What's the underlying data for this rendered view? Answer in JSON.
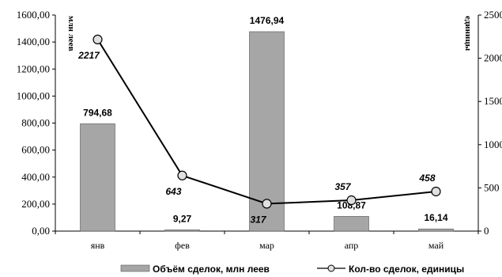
{
  "chart_data": {
    "type": "bar",
    "title": "",
    "categories": [
      "янв",
      "фев",
      "мар",
      "апр",
      "май"
    ],
    "series": [
      {
        "name": "Объём сделок, млн леев",
        "type": "bar",
        "axis": "left",
        "values": [
          794.68,
          9.27,
          1476.94,
          108.87,
          16.14
        ],
        "labels": [
          "794,68",
          "9,27",
          "1476,94",
          "108,87",
          "16,14"
        ],
        "color": "#a6a6a6"
      },
      {
        "name": "Кол-во сделок, единицы",
        "type": "line",
        "axis": "right",
        "values": [
          2217,
          643,
          317,
          357,
          458
        ],
        "labels": [
          "2217",
          "643",
          "317",
          "357",
          "458"
        ],
        "color": "#000000"
      }
    ],
    "y_left": {
      "label": "млн леев",
      "min": 0,
      "max": 1600,
      "ticks": [
        "0,00",
        "200,00",
        "400,00",
        "600,00",
        "800,00",
        "1000,00",
        "1200,00",
        "1400,00",
        "1600,00"
      ]
    },
    "y_right": {
      "label": "единицы",
      "min": 0,
      "max": 2500,
      "ticks": [
        "0",
        "500",
        "1000",
        "1500",
        "2000",
        "2500"
      ]
    },
    "grid": false,
    "legend_position": "bottom"
  }
}
